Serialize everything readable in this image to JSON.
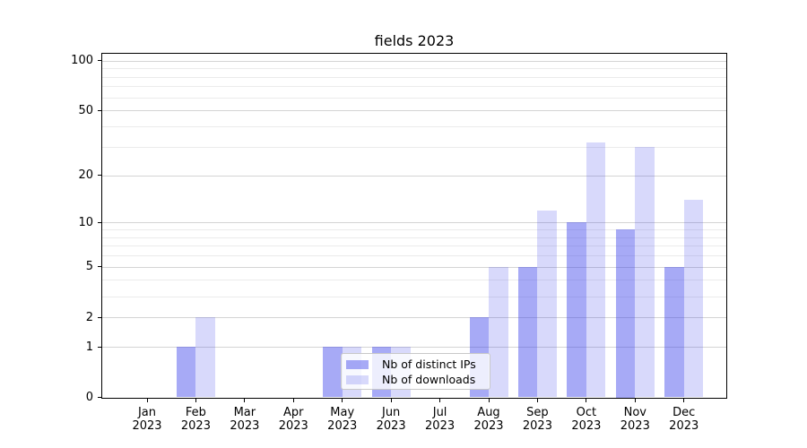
{
  "chart_data": {
    "type": "bar",
    "title": "fields 2023",
    "y_scale": "log1p",
    "categories": [
      "Jan",
      "Feb",
      "Mar",
      "Apr",
      "May",
      "Jun",
      "Jul",
      "Aug",
      "Sep",
      "Oct",
      "Nov",
      "Dec"
    ],
    "year_label": "2023",
    "series": [
      {
        "name": "Nb of distinct IPs",
        "color": "rgba(60,66,235,0.45)",
        "values": [
          0,
          1,
          0,
          0,
          1,
          1,
          0,
          2,
          5,
          10,
          9,
          5
        ]
      },
      {
        "name": "Nb of downloads",
        "color": "rgba(60,66,235,0.20)",
        "values": [
          0,
          2,
          0,
          0,
          1,
          1,
          0,
          5,
          12,
          32,
          30,
          14
        ]
      }
    ],
    "y_ticks": [
      0,
      1,
      2,
      5,
      10,
      20,
      50,
      100
    ],
    "y_minor_gridlines": [
      3,
      4,
      6,
      7,
      8,
      9,
      30,
      40,
      60,
      70,
      80,
      90
    ],
    "ylim": [
      0,
      111
    ],
    "xlabel": "",
    "ylabel": "",
    "grid": "horizontal",
    "legend_position": "lower center"
  },
  "colors": {
    "bar_distinct_ips_solid": "#a6a9f7",
    "bar_downloads_solid": "#d9daf9",
    "grid_major": "#d4d4d4",
    "grid_minor": "#ebebeb",
    "axis_spine": "#000000",
    "legend_border": "#c8c8c8",
    "legend_background": "rgba(255,255,255,0.8)",
    "text": "#000000"
  }
}
